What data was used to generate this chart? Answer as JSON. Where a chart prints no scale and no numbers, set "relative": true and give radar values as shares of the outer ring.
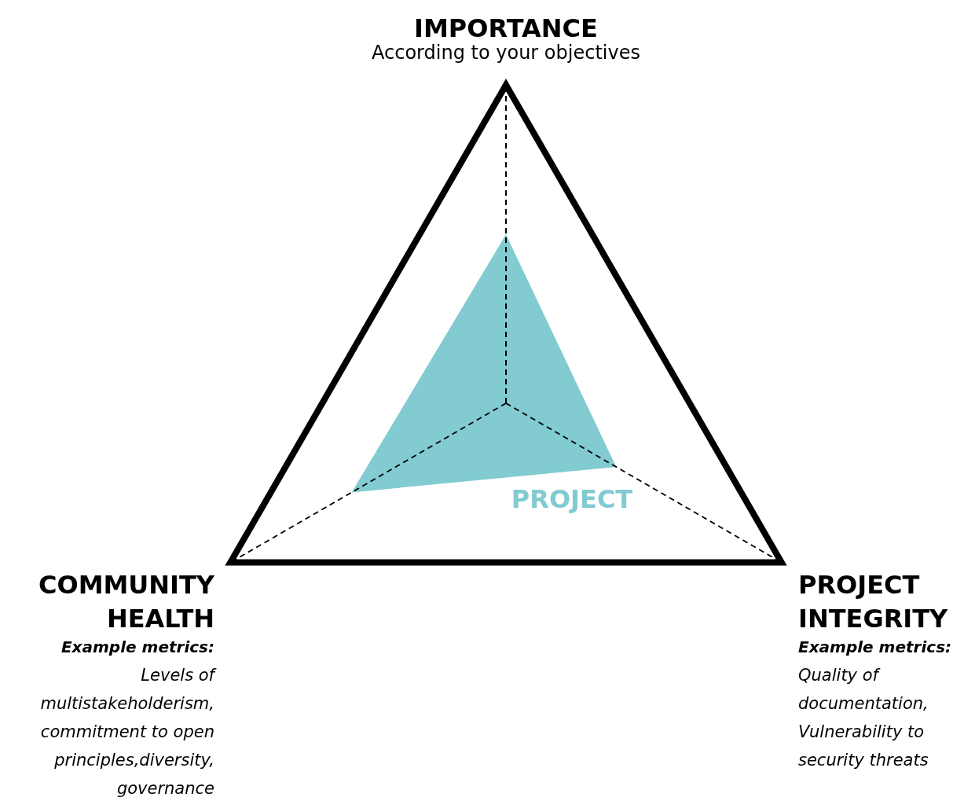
{
  "chart_data": {
    "type": "radar",
    "relative": true,
    "categories": [
      "IMPORTANCE",
      "PROJECT INTEGRITY",
      "COMMUNITY HEALTH"
    ],
    "series": [
      {
        "name": "PROJECT",
        "color": "#81cbd1",
        "values": [
          0.53,
          0.4,
          0.56
        ]
      }
    ],
    "annotations": [
      "According to your objectives",
      "Example metrics:",
      "Quality of\ndocumentation,\nVulnerability to\nsecurity threats",
      "Example metrics:",
      "Levels of\nmultistakeholderism,\ncommitment to open\nprinciples,diversity,\ngovernance"
    ]
  }
}
